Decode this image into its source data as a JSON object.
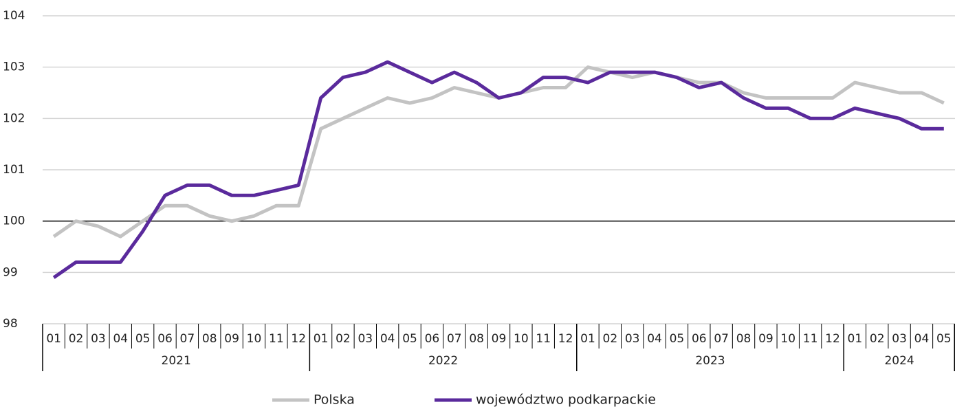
{
  "chart_data": {
    "type": "line",
    "categories": [
      "01",
      "02",
      "03",
      "04",
      "05",
      "06",
      "07",
      "08",
      "09",
      "10",
      "11",
      "12",
      "01",
      "02",
      "03",
      "04",
      "05",
      "06",
      "07",
      "08",
      "09",
      "10",
      "11",
      "12",
      "01",
      "02",
      "03",
      "04",
      "05",
      "06",
      "07",
      "08",
      "09",
      "10",
      "11",
      "12",
      "01",
      "02",
      "03",
      "04",
      "05"
    ],
    "category_groups": [
      "2021",
      "2022",
      "2023",
      "2024"
    ],
    "series": [
      {
        "name": "Polska",
        "color": "#c3c3c3",
        "values": [
          99.7,
          100.0,
          99.9,
          99.7,
          100.0,
          100.3,
          100.3,
          100.1,
          100.0,
          100.1,
          100.3,
          100.3,
          101.8,
          102.0,
          102.2,
          102.4,
          102.3,
          102.4,
          102.6,
          102.5,
          102.4,
          102.5,
          102.6,
          102.6,
          103.0,
          102.9,
          102.8,
          102.9,
          102.8,
          102.7,
          102.7,
          102.5,
          102.4,
          102.4,
          102.4,
          102.4,
          102.7,
          102.6,
          102.5,
          102.5,
          102.3
        ]
      },
      {
        "name": "województwo podkarpackie",
        "color": "#5a2a9c",
        "values": [
          98.9,
          99.2,
          99.2,
          99.2,
          99.8,
          100.5,
          100.7,
          100.7,
          100.5,
          100.5,
          100.6,
          100.7,
          102.4,
          102.8,
          102.9,
          103.1,
          102.9,
          102.7,
          102.9,
          102.7,
          102.4,
          102.5,
          102.8,
          102.8,
          102.7,
          102.9,
          102.9,
          102.9,
          102.8,
          102.6,
          102.7,
          102.4,
          102.2,
          102.2,
          102.0,
          102.0,
          102.2,
          102.1,
          102.0,
          101.8,
          101.8
        ]
      }
    ],
    "ylim": [
      98,
      104
    ],
    "yticks": [
      98,
      99,
      100,
      101,
      102,
      103,
      104
    ],
    "reference_line": 100,
    "grid": true,
    "legend": "bottom"
  }
}
